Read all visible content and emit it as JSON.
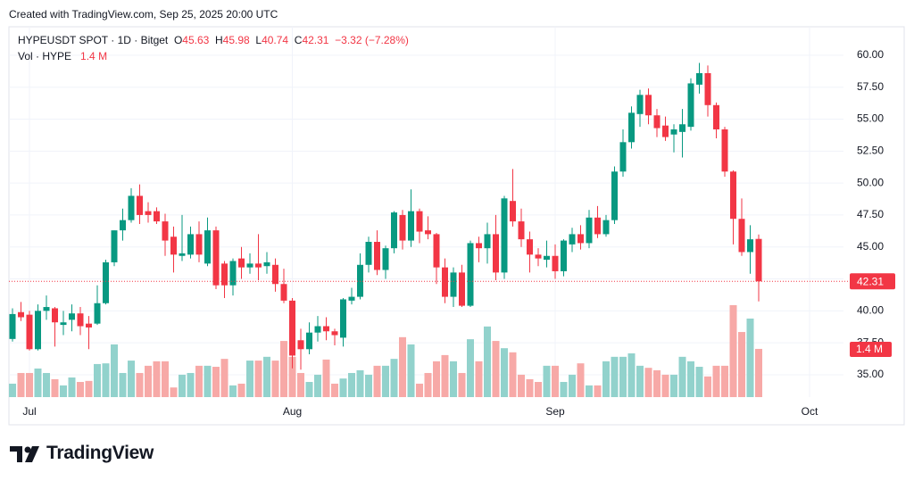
{
  "header": {
    "created": "Created with TradingView.com, Sep 25, 2025 20:00 UTC"
  },
  "footer": {
    "brand": "TradingView"
  },
  "chart_data": {
    "type": "candlestick",
    "legend": {
      "symbol": "HYPEUSDT SPOT · 1D · Bitget",
      "ohlc_letters": [
        "O",
        "H",
        "L",
        "C"
      ],
      "change": "−3.32 (−7.28%)",
      "volume_name": "Vol · HYPE",
      "volume": "1.4 M"
    },
    "categories": [
      null,
      null,
      "Jul",
      null,
      null,
      null,
      null,
      null,
      null,
      null,
      null,
      null,
      null,
      null,
      null,
      null,
      null,
      null,
      null,
      null,
      null,
      null,
      null,
      null,
      null,
      null,
      null,
      null,
      null,
      null,
      null,
      null,
      null,
      "Aug",
      null,
      null,
      null,
      null,
      null,
      null,
      null,
      null,
      null,
      null,
      null,
      null,
      null,
      null,
      null,
      null,
      null,
      null,
      null,
      null,
      null,
      null,
      null,
      null,
      null,
      null,
      null,
      null,
      null,
      null,
      "Sep",
      null,
      null,
      null,
      null,
      null,
      null,
      null,
      null,
      null,
      null,
      null,
      null,
      null,
      null,
      null,
      null,
      null,
      null,
      null,
      null,
      null,
      null,
      null,
      null,
      null,
      null,
      null,
      null,
      null,
      "Oct"
    ],
    "open": [
      37.8,
      39.9,
      39.7,
      37.0,
      40.0,
      40.2,
      38.9,
      39.3,
      39.8,
      39.0,
      39.0,
      40.6,
      43.8,
      46.3,
      47.1,
      49.0,
      47.8,
      47.8,
      47.0,
      45.8,
      44.3,
      44.4,
      46.0,
      43.7,
      46.3,
      43.7,
      42.0,
      44.1,
      43.4,
      43.7,
      43.5,
      43.6,
      42.1,
      40.8,
      37.7,
      37.0,
      38.3,
      38.8,
      38.4,
      37.9,
      40.8,
      41.1,
      43.6,
      45.4,
      43.2,
      44.9,
      47.5,
      45.5,
      47.8,
      46.3,
      46.0,
      43.4,
      41.1,
      43.0,
      40.4,
      45.3,
      44.9,
      46.0,
      43.0,
      48.6,
      47.0,
      45.6,
      44.4,
      44.0,
      44.3,
      43.1,
      45.2,
      46.0,
      45.3,
      47.3,
      46.0,
      47.1,
      50.9,
      53.2,
      55.4,
      56.9,
      55.3,
      54.5,
      53.8,
      54.0,
      54.4,
      57.7,
      58.6,
      56.1,
      54.2,
      50.9,
      47.2,
      44.6,
      45.63,
      null,
      null,
      null,
      null,
      null,
      null
    ],
    "high": [
      40.2,
      40.7,
      40.0,
      40.5,
      41.2,
      40.3,
      40.0,
      40.5,
      40.3,
      39.6,
      42.0,
      44.0,
      46.3,
      48.0,
      49.6,
      49.9,
      48.5,
      48.1,
      47.6,
      46.6,
      47.5,
      46.6,
      47.0,
      47.3,
      46.6,
      43.9,
      44.1,
      45.0,
      44.5,
      46.0,
      44.6,
      44.1,
      43.3,
      41.0,
      38.6,
      39.1,
      39.6,
      39.5,
      38.6,
      41.0,
      41.8,
      44.5,
      45.8,
      46.3,
      45.1,
      47.8,
      47.9,
      49.5,
      48.0,
      47.4,
      46.1,
      44.1,
      43.4,
      43.6,
      45.5,
      45.8,
      46.9,
      47.5,
      49.0,
      51.1,
      48.0,
      46.2,
      44.9,
      45.5,
      45.2,
      45.6,
      46.5,
      46.7,
      47.9,
      48.2,
      47.5,
      51.3,
      54.2,
      56.0,
      57.3,
      57.4,
      55.8,
      55.2,
      54.6,
      55.8,
      58.2,
      59.4,
      59.2,
      56.3,
      54.4,
      51.0,
      48.8,
      46.7,
      45.98,
      null,
      null,
      null,
      null,
      null,
      null
    ],
    "low": [
      37.6,
      39.2,
      36.9,
      36.9,
      39.3,
      37.2,
      38.1,
      38.4,
      38.1,
      37.0,
      38.9,
      40.5,
      43.5,
      45.5,
      46.9,
      46.8,
      46.9,
      46.8,
      44.3,
      43.0,
      43.9,
      44.1,
      43.8,
      43.5,
      41.7,
      41.0,
      41.2,
      42.5,
      42.9,
      42.4,
      42.9,
      41.5,
      40.6,
      35.5,
      35.4,
      36.6,
      37.6,
      37.7,
      37.3,
      37.2,
      40.5,
      40.9,
      43.0,
      42.8,
      42.5,
      44.5,
      44.8,
      45.0,
      45.3,
      45.6,
      42.1,
      40.6,
      40.3,
      40.3,
      40.3,
      43.8,
      43.7,
      42.4,
      42.5,
      46.6,
      45.0,
      43.0,
      43.5,
      43.4,
      42.5,
      42.7,
      44.6,
      44.8,
      44.9,
      45.7,
      45.8,
      46.8,
      50.5,
      52.7,
      54.4,
      54.6,
      53.6,
      53.3,
      52.4,
      52.0,
      54.1,
      57.0,
      55.2,
      53.5,
      50.5,
      45.2,
      44.3,
      42.9,
      40.74,
      null,
      null,
      null,
      null,
      null,
      null
    ],
    "close": [
      39.75,
      39.5,
      37.0,
      40.0,
      40.3,
      39.1,
      39.1,
      39.8,
      38.8,
      38.7,
      40.6,
      43.8,
      46.3,
      47.1,
      49.0,
      47.5,
      47.5,
      47.0,
      45.5,
      44.4,
      44.5,
      46.0,
      44.4,
      46.3,
      42.0,
      42.0,
      43.9,
      43.4,
      43.7,
      43.4,
      43.8,
      42.1,
      40.8,
      36.5,
      37.0,
      38.3,
      38.8,
      38.4,
      38.1,
      40.9,
      41.1,
      43.6,
      45.4,
      43.2,
      44.9,
      47.7,
      45.5,
      47.8,
      46.2,
      46.0,
      43.4,
      41.1,
      43.0,
      40.4,
      45.3,
      44.9,
      46.0,
      43.0,
      48.8,
      47.0,
      45.6,
      44.4,
      44.1,
      44.3,
      43.1,
      45.5,
      46.0,
      45.3,
      47.3,
      46.0,
      47.1,
      50.9,
      53.2,
      55.5,
      56.9,
      55.3,
      54.3,
      53.6,
      54.2,
      54.6,
      57.8,
      58.6,
      56.1,
      54.2,
      50.9,
      47.2,
      44.6,
      45.6,
      42.31,
      null,
      null,
      null,
      null,
      null,
      null
    ],
    "volume": [
      0.39,
      0.7,
      0.7,
      0.83,
      0.7,
      0.52,
      0.34,
      0.57,
      0.44,
      0.47,
      0.96,
      0.98,
      1.53,
      0.7,
      1.06,
      0.7,
      0.91,
      1.04,
      1.04,
      0.28,
      0.65,
      0.7,
      0.91,
      0.91,
      0.88,
      1.11,
      0.34,
      0.39,
      1.06,
      1.06,
      1.17,
      1.06,
      1.63,
      1.17,
      0.7,
      0.44,
      0.65,
      1.09,
      0.39,
      0.54,
      0.7,
      0.78,
      0.65,
      0.91,
      0.91,
      1.11,
      1.74,
      1.53,
      0.39,
      0.7,
      1.04,
      1.22,
      1.04,
      0.7,
      1.68,
      1.04,
      2.05,
      1.63,
      1.42,
      1.3,
      0.65,
      0.52,
      0.44,
      0.91,
      0.91,
      0.44,
      0.65,
      0.98,
      0.34,
      0.34,
      1.04,
      1.17,
      1.17,
      1.27,
      0.91,
      0.85,
      0.78,
      0.65,
      0.65,
      1.17,
      1.04,
      0.88,
      0.6,
      0.91,
      0.91,
      2.67,
      1.89,
      2.28,
      1.4,
      null,
      null,
      null,
      null,
      null,
      null
    ],
    "up_color": "#089981",
    "down_color": "#f23645",
    "up_volume_color": "#92d2cc",
    "down_volume_color": "#f7a9a7",
    "ylim": [
      33.25,
      62.23
    ],
    "yticks": [
      {
        "value": 35,
        "label": "35.00"
      },
      {
        "value": 37.5,
        "label": "37.50"
      },
      {
        "value": 40,
        "label": "40.00"
      },
      {
        "value": 42.5,
        "label": "42.50"
      },
      {
        "value": 45,
        "label": "45.00"
      },
      {
        "value": 47.5,
        "label": "47.50"
      },
      {
        "value": 50,
        "label": "50.00"
      },
      {
        "value": 52.5,
        "label": "52.50"
      },
      {
        "value": 55,
        "label": "55.00"
      },
      {
        "value": 57.5,
        "label": "57.50"
      },
      {
        "value": 60,
        "label": "60.00"
      }
    ],
    "y2lim": [
      0,
      10.75
    ],
    "grid": true
  }
}
